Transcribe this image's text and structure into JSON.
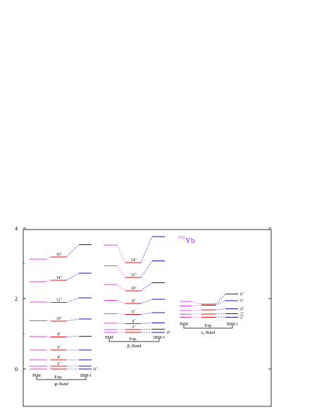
{
  "nucleus": {
    "mass": "172",
    "symbol": "Yb"
  },
  "y_axis": {
    "range": [
      0,
      4
    ],
    "ticks": [
      "0",
      "2",
      "4"
    ]
  },
  "colors": {
    "phm": "#e040e0",
    "exp": "#e01010",
    "ibm": "#1010c0",
    "axis": "#000000"
  },
  "bands": [
    {
      "id": "gr",
      "label_prefix": "gr",
      "label_suffix": "-Band",
      "columns": {
        "phm": "PhM",
        "exp": "Exp.",
        "ibm": "IBM-1"
      },
      "levels": [
        {
          "spin": "0",
          "parity": "+",
          "phm": 0.0,
          "exp": 0.0,
          "ibm": 0.0
        },
        {
          "spin": "2",
          "parity": "+",
          "phm": 0.08,
          "exp": 0.08,
          "ibm": 0.08
        },
        {
          "spin": "4",
          "parity": "+",
          "phm": 0.26,
          "exp": 0.26,
          "ibm": 0.26
        },
        {
          "spin": "6",
          "parity": "+",
          "phm": 0.54,
          "exp": 0.54,
          "ibm": 0.54
        },
        {
          "spin": "8",
          "parity": "+",
          "phm": 0.92,
          "exp": 0.91,
          "ibm": 0.93
        },
        {
          "spin": "10",
          "parity": "+",
          "phm": 1.37,
          "exp": 1.36,
          "ibm": 1.42
        },
        {
          "spin": "12",
          "parity": "+",
          "phm": 1.9,
          "exp": 1.89,
          "ibm": 2.02
        },
        {
          "spin": "14",
          "parity": "+",
          "phm": 2.48,
          "exp": 2.52,
          "ibm": 2.72
        },
        {
          "spin": "16",
          "parity": "+",
          "phm": 3.12,
          "exp": 3.18,
          "ibm": 3.53
        }
      ]
    },
    {
      "id": "beta",
      "label_prefix": "β",
      "label_sub": "1",
      "label_suffix": "-Band",
      "columns": {
        "phm": "PhM",
        "exp": "Exp.",
        "ibm": "IBM-1"
      },
      "levels": [
        {
          "spin": "0",
          "parity": "+",
          "phm": 1.04,
          "exp": 1.04,
          "ibm": 1.04
        },
        {
          "spin": "2",
          "parity": "+",
          "phm": 1.12,
          "exp": 1.12,
          "ibm": 1.13
        },
        {
          "spin": "4",
          "parity": "+",
          "phm": 1.3,
          "exp": 1.29,
          "ibm": 1.31
        },
        {
          "spin": "6",
          "parity": "+",
          "phm": 1.57,
          "exp": 1.55,
          "ibm": 1.6
        },
        {
          "spin": "8",
          "parity": "+",
          "phm": 1.95,
          "exp": 1.86,
          "ibm": 1.98
        },
        {
          "spin": "10",
          "parity": "+",
          "phm": 2.4,
          "exp": 2.22,
          "ibm": 2.45
        },
        {
          "spin": "12",
          "parity": "+",
          "phm": 2.93,
          "exp": 2.6,
          "ibm": 3.07
        },
        {
          "spin": "14",
          "parity": "+",
          "phm": 3.52,
          "exp": 3.02,
          "ibm": 3.76
        }
      ]
    },
    {
      "id": "gamma",
      "label_prefix": "γ",
      "label_sub": "1",
      "label_suffix": "-Band",
      "columns": {
        "phm": "PhM",
        "exp": "Exp.",
        "ibm": "IBM-1"
      },
      "levels": [
        {
          "spin": "2",
          "parity": "+",
          "phm": 1.47,
          "exp": 1.47,
          "ibm": 1.47
        },
        {
          "spin": "3",
          "parity": "+",
          "phm": 1.56,
          "exp": 1.56,
          "ibm": 1.57
        },
        {
          "spin": "4",
          "parity": "+",
          "phm": 1.66,
          "exp": 1.68,
          "ibm": 1.71
        },
        {
          "spin": "5",
          "parity": "+",
          "phm": 1.79,
          "exp": 1.81,
          "ibm": 1.94
        },
        {
          "spin": "6",
          "parity": "+",
          "phm": 1.92,
          "exp": 1.84,
          "ibm": 2.13
        }
      ]
    }
  ]
}
